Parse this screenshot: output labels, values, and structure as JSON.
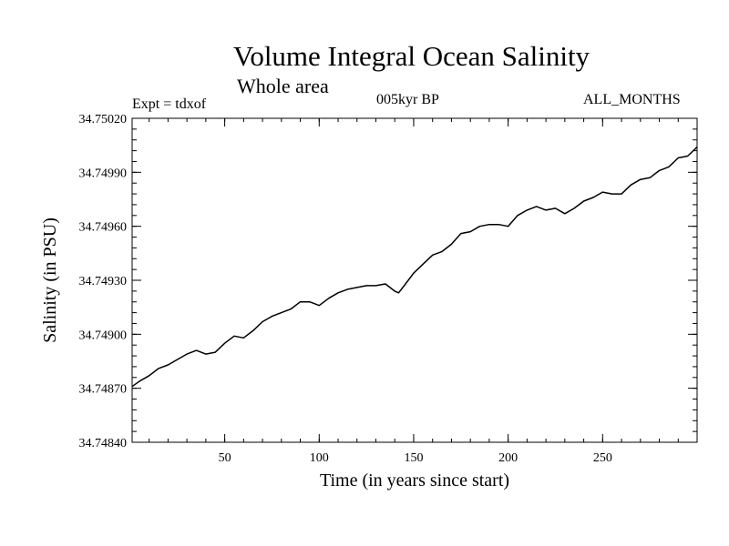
{
  "chart_data": {
    "type": "line",
    "title": "Volume Integral Ocean Salinity",
    "subtitle": "Whole area",
    "annotations": {
      "experiment": "Expt = tdxof",
      "period": "005kyr BP",
      "months": "ALL_MONTHS"
    },
    "xlabel": "Time (in years since start)",
    "ylabel": "Salinity (in PSU)",
    "xlim": [
      1,
      300
    ],
    "ylim": [
      34.7484,
      34.7502
    ],
    "x_ticks": [
      50,
      100,
      150,
      200,
      250
    ],
    "x_tick_labels": [
      "50",
      "100",
      "150",
      "200",
      "250"
    ],
    "y_ticks": [
      34.7484,
      34.7487,
      34.749,
      34.7493,
      34.7496,
      34.7499,
      34.7502
    ],
    "y_tick_labels": [
      "34.74840",
      "34.74870",
      "34.74900",
      "34.74930",
      "34.74960",
      "34.74990",
      "34.75020"
    ],
    "grid": false,
    "series": [
      {
        "x": [
          1,
          5,
          10,
          15,
          20,
          25,
          30,
          35,
          40,
          45,
          50,
          55,
          60,
          65,
          70,
          75,
          80,
          85,
          90,
          95,
          100,
          105,
          110,
          115,
          120,
          125,
          130,
          135,
          140,
          142,
          145,
          150,
          155,
          160,
          165,
          170,
          175,
          180,
          185,
          190,
          195,
          200,
          205,
          210,
          215,
          220,
          225,
          230,
          235,
          240,
          245,
          250,
          255,
          260,
          265,
          270,
          275,
          280,
          285,
          290,
          295,
          300
        ],
        "y": [
          34.74871,
          34.74874,
          34.74877,
          34.74881,
          34.74883,
          34.74886,
          34.74889,
          34.74891,
          34.74889,
          34.7489,
          34.74895,
          34.74899,
          34.74898,
          34.74902,
          34.74907,
          34.7491,
          34.74912,
          34.74914,
          34.74918,
          34.74918,
          34.74916,
          34.7492,
          34.74923,
          34.74925,
          34.74926,
          34.74927,
          34.74927,
          34.74928,
          34.74924,
          34.74923,
          34.74927,
          34.74934,
          34.74939,
          34.74944,
          34.74946,
          34.7495,
          34.74956,
          34.74957,
          34.7496,
          34.74961,
          34.74961,
          34.7496,
          34.74966,
          34.74969,
          34.74971,
          34.74969,
          34.7497,
          34.74967,
          34.7497,
          34.74974,
          34.74976,
          34.74979,
          34.74978,
          34.74978,
          34.74983,
          34.74986,
          34.74987,
          34.74991,
          34.74993,
          34.74998,
          34.74999,
          34.75004
        ]
      }
    ]
  }
}
